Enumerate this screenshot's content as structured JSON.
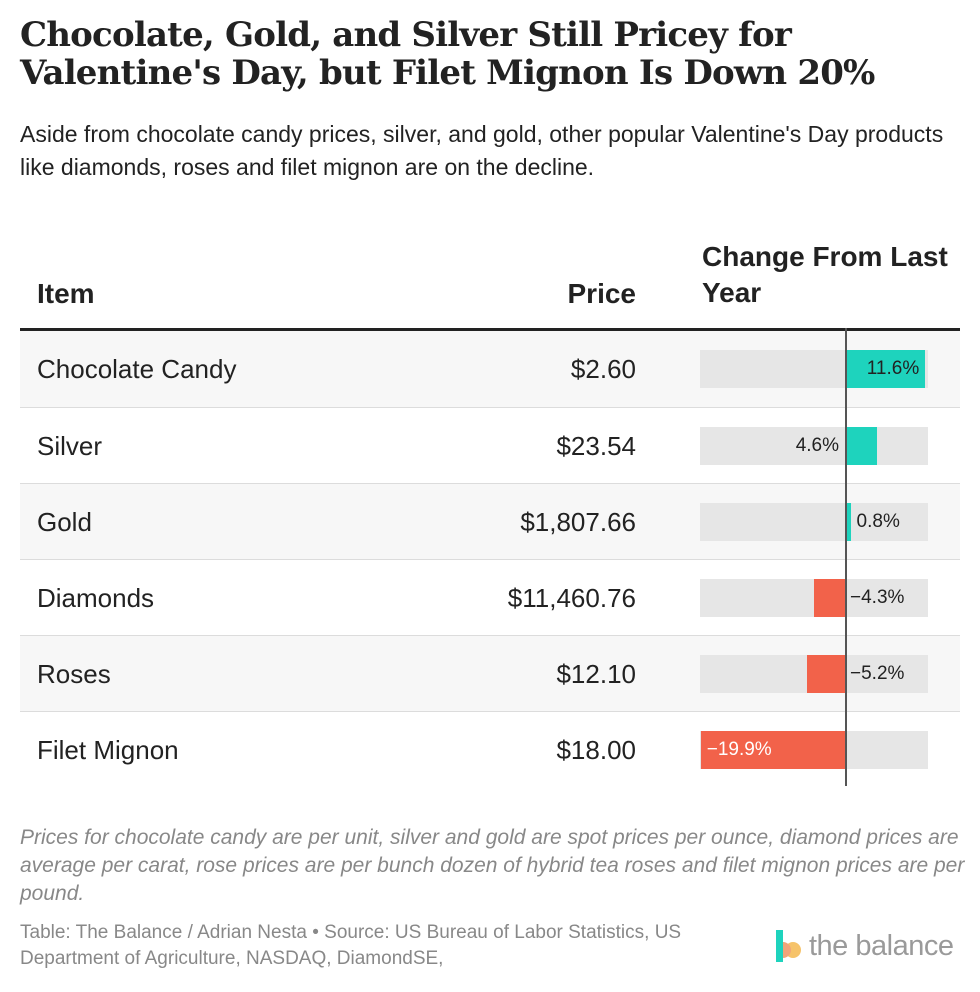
{
  "header": {
    "title": "Chocolate, Gold, and Silver Still Pricey for Valentine's Day, but Filet Mignon Is Down 20%",
    "subtitle": "Aside from chocolate candy prices, silver, and gold, other popular Valentine's Day products like diamonds, roses and filet mignon are on the decline."
  },
  "chart_data": {
    "type": "table",
    "columns": [
      "Item",
      "Price",
      "Change From Last Year"
    ],
    "rows": [
      {
        "item": "Chocolate Candy",
        "price": "$2.60",
        "change": 11.6,
        "change_label": "11.6%"
      },
      {
        "item": "Silver",
        "price": "$23.54",
        "change": 4.6,
        "change_label": "4.6%"
      },
      {
        "item": "Gold",
        "price": "$1,807.66",
        "change": 0.8,
        "change_label": "0.8%"
      },
      {
        "item": "Diamonds",
        "price": "$11,460.76",
        "change": -4.3,
        "change_label": "−4.3%"
      },
      {
        "item": "Roses",
        "price": "$12.10",
        "change": -5.2,
        "change_label": "−5.2%"
      },
      {
        "item": "Filet Mignon",
        "price": "$18.00",
        "change": -19.9,
        "change_label": "−19.9%"
      }
    ],
    "change_range": [
      -20,
      12
    ],
    "colors": {
      "positive": "#1ed3bd",
      "negative": "#f2624a",
      "track": "#e6e6e6"
    }
  },
  "footer": {
    "notes": "Prices for chocolate candy are per unit, silver and gold are spot prices per ounce, diamond prices are average per carat, rose prices are per bunch dozen of hybrid tea roses and filet mignon prices are per pound.",
    "credit": "Table: The Balance / Adrian Nesta • Source: US Bureau of Labor Statistics, US Department of Agriculture, NASDAQ, DiamondSE,",
    "logo_text": "the balance"
  }
}
